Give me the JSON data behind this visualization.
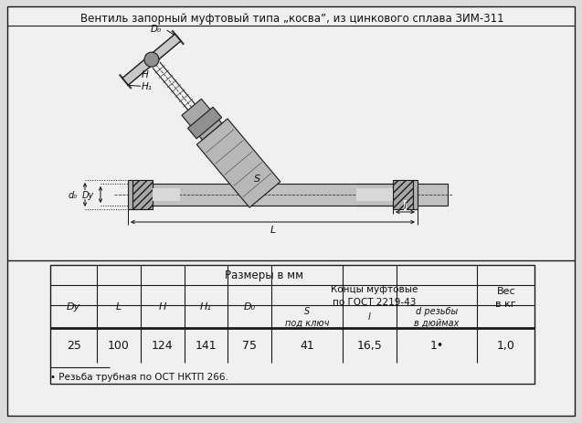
{
  "title": "Вентиль запорный муфтовый типа „косва”, из цинкового сплава ЗИМ-311",
  "bg_color": "#e8e8e8",
  "line_color": "#1a1a1a",
  "table": {
    "col_header1": "Размеры в мм",
    "col_header_koncы": "Концы муфтовые\nпо ГОСТ 2219-43",
    "col_header_ves": "Вес\nв кг",
    "col_headers_left": [
      "Dy",
      "L",
      "H",
      "H₁",
      "D₀"
    ],
    "col_headers_right": [
      "S\nпод ключ",
      "l",
      "d резьбы\nв дюймах"
    ],
    "data_row": [
      "25",
      "100",
      "124",
      "141",
      "75",
      "41",
      "16,5",
      "1•",
      "1,0"
    ],
    "footnote": "• Резьба трубная по ОСТ НКТП 266."
  }
}
